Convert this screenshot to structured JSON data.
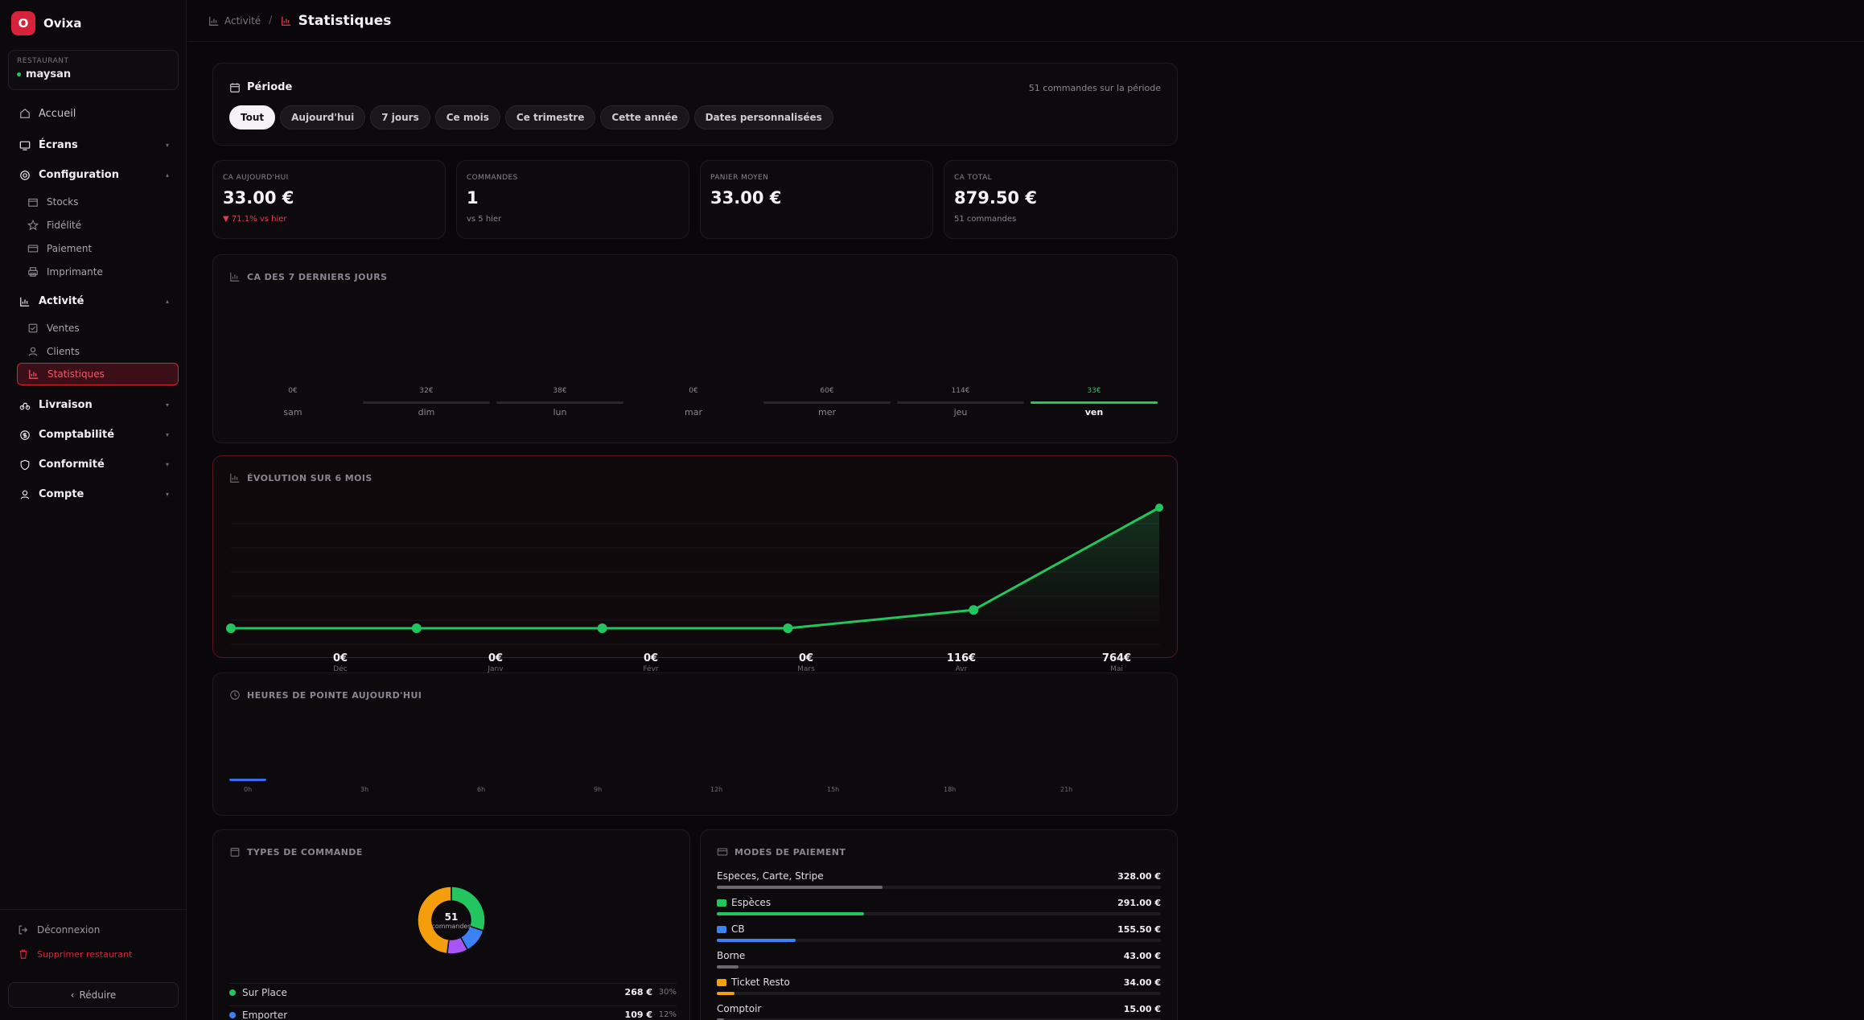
{
  "brand": {
    "logo_letter": "O",
    "name": "Ovixa"
  },
  "restaurant": {
    "label": "RESTAURANT",
    "name": "maysan"
  },
  "nav": {
    "accueil": "Accueil",
    "ecrans": "Écrans",
    "configuration": "Configuration",
    "config_items": [
      "Stocks",
      "Fidélité",
      "Paiement",
      "Imprimante"
    ],
    "activite": "Activité",
    "activite_items": [
      "Ventes",
      "Clients",
      "Statistiques"
    ],
    "livraison": "Livraison",
    "comptabilite": "Comptabilité",
    "conformite": "Conformité",
    "compte": "Compte"
  },
  "bottom": {
    "logout": "Déconnexion",
    "delete": "Supprimer restaurant",
    "collapse": "Réduire"
  },
  "header": {
    "crumb_parent": "Activité",
    "separator": "/",
    "title": "Statistiques"
  },
  "periode": {
    "title": "Période",
    "count": "51 commandes sur la période",
    "chips": [
      "Tout",
      "Aujourd'hui",
      "7 jours",
      "Ce mois",
      "Ce trimestre",
      "Cette année",
      "Dates personnalisées"
    ],
    "active_index": 0
  },
  "kpis": [
    {
      "label": "CA AUJOURD'HUI",
      "value": "33.00 €",
      "sub": "▼ 71.1% vs hier",
      "sub_color": "red"
    },
    {
      "label": "COMMANDES",
      "value": "1",
      "sub": "vs 5 hier",
      "sub_color": "muted"
    },
    {
      "label": "PANIER MOYEN",
      "value": "33.00 €",
      "sub": "",
      "sub_color": "muted"
    },
    {
      "label": "CA TOTAL",
      "value": "879.50 €",
      "sub": "51 commandes",
      "sub_color": "muted"
    }
  ],
  "week": {
    "title": "CA DES 7 DERNIERS JOURS",
    "days": [
      {
        "value": "0€",
        "day": "sam",
        "amount": 0
      },
      {
        "value": "32€",
        "day": "dim",
        "amount": 32
      },
      {
        "value": "38€",
        "day": "lun",
        "amount": 38
      },
      {
        "value": "0€",
        "day": "mar",
        "amount": 0
      },
      {
        "value": "60€",
        "day": "mer",
        "amount": 60
      },
      {
        "value": "114€",
        "day": "jeu",
        "amount": 114
      },
      {
        "value": "33€",
        "day": "ven",
        "amount": 33
      }
    ],
    "highlight_index": 6,
    "accent": "#22c55e"
  },
  "evolution": {
    "title": "ÉVOLUTION SUR 6 MOIS",
    "labels": [
      {
        "value": "0€",
        "month": "Déc"
      },
      {
        "value": "0€",
        "month": "Janv"
      },
      {
        "value": "0€",
        "month": "Févr"
      },
      {
        "value": "0€",
        "month": "Mars"
      },
      {
        "value": "116€",
        "month": "Avr"
      },
      {
        "value": "764€",
        "month": "Mai"
      }
    ]
  },
  "chart_data": {
    "type": "line",
    "categories": [
      "Déc",
      "Janv",
      "Févr",
      "Mars",
      "Avr",
      "Mai"
    ],
    "values": [
      0,
      0,
      0,
      0,
      116,
      764
    ],
    "title": "ÉVOLUTION SUR 6 MOIS",
    "ylim": [
      0,
      764
    ],
    "grid": true,
    "line_color": "#22c55e"
  },
  "hours": {
    "title": "HEURES DE POINTE AUJOURD'HUI",
    "ticks": [
      "0h",
      "3h",
      "6h",
      "9h",
      "12h",
      "15h",
      "18h",
      "21h"
    ],
    "bar_color": "#3b6cf0"
  },
  "order_types": {
    "title": "TYPES DE COMMANDE",
    "total": "51",
    "total_label": "commandes",
    "items": [
      {
        "name": "Sur Place",
        "amount": "268 €",
        "pct": "30%",
        "color": "#22c55e"
      },
      {
        "name": "Emporter",
        "amount": "109 €",
        "pct": "12%",
        "color": "#3b82f6"
      }
    ],
    "donut": [
      {
        "color": "#22c55e",
        "share": 0.3
      },
      {
        "color": "#3b82f6",
        "share": 0.12
      },
      {
        "color": "#a855f7",
        "share": 0.1
      },
      {
        "color": "#f59e0b",
        "share": 0.48
      }
    ]
  },
  "payments": {
    "title": "MODES DE PAIEMENT",
    "items": [
      {
        "name": "Especes, Carte, Stripe",
        "amount": "328.00 €",
        "share": 0.373,
        "color": "#6b6870",
        "badge": ""
      },
      {
        "name": "Espèces",
        "amount": "291.00 €",
        "share": 0.331,
        "color": "#22c55e",
        "badge": "#22c55e"
      },
      {
        "name": "CB",
        "amount": "155.50 €",
        "share": 0.177,
        "color": "#3b82f6",
        "badge": "#3b82f6"
      },
      {
        "name": "Borne",
        "amount": "43.00 €",
        "share": 0.049,
        "color": "#6b6870",
        "badge": ""
      },
      {
        "name": "Ticket Resto",
        "amount": "34.00 €",
        "share": 0.039,
        "color": "#f59e0b",
        "badge": "#f59e0b"
      },
      {
        "name": "Comptoir",
        "amount": "15.00 €",
        "share": 0.017,
        "color": "#6b6870",
        "badge": ""
      }
    ]
  }
}
